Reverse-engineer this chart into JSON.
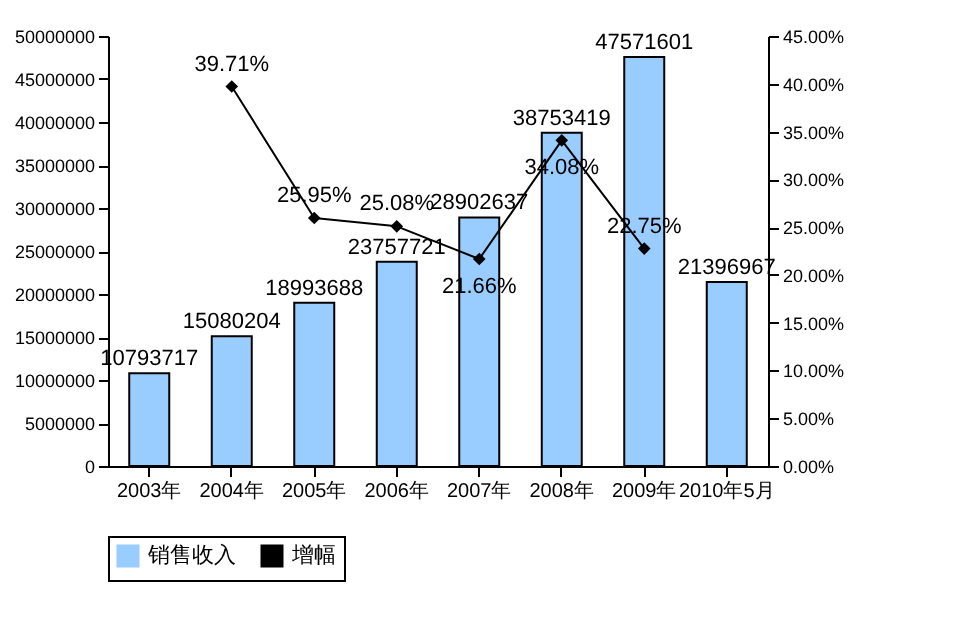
{
  "chart_data": {
    "type": "bar",
    "categories": [
      "2003年",
      "2004年",
      "2005年",
      "2006年",
      "2007年",
      "2008年",
      "2009年",
      "2010年5月"
    ],
    "series": [
      {
        "name": "销售收入",
        "color": "#99ccff",
        "values": [
          10793717,
          15080204,
          18993688,
          23757721,
          28902637,
          38753419,
          47571601,
          21396967
        ]
      },
      {
        "name": "增幅",
        "type": "line",
        "axis": "y2",
        "color": "#000000",
        "marker": "diamond",
        "values": [
          null,
          39.71,
          25.95,
          25.08,
          21.66,
          34.08,
          22.75,
          null
        ],
        "value_labels": [
          null,
          "39.71%",
          "25.95%",
          "25.08%",
          "21.66%",
          "34.08%",
          "22.75%",
          null
        ]
      }
    ],
    "data_labels": true,
    "ylim": [
      0,
      50000000
    ],
    "yticks": [
      0,
      5000000,
      10000000,
      15000000,
      20000000,
      25000000,
      30000000,
      35000000,
      40000000,
      45000000,
      50000000
    ],
    "y2lim": [
      0,
      45
    ],
    "y2ticks": [
      {
        "value": 0,
        "label": "0.00%"
      },
      {
        "value": 5,
        "label": "5.00%"
      },
      {
        "value": 10,
        "label": "10.00%"
      },
      {
        "value": 15,
        "label": "15.00%"
      },
      {
        "value": 20,
        "label": "20.00%"
      },
      {
        "value": 25,
        "label": "25.00%"
      },
      {
        "value": 30,
        "label": "30.00%"
      },
      {
        "value": 35,
        "label": "35.00%"
      },
      {
        "value": 40,
        "label": "40.00%"
      },
      {
        "value": 45,
        "label": "45.00%"
      }
    ],
    "grid": false,
    "legend": "bottom"
  }
}
